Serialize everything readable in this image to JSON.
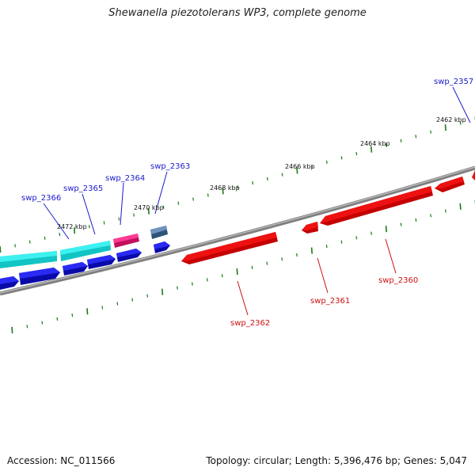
{
  "title": "Shewanella piezotolerans WP3, complete genome",
  "footer": {
    "accession_text": "Accession: NC_011566",
    "summary_text": "Topology: circular; Length: 5,396,476 bp; Genes: 5,047"
  },
  "colors": {
    "backbone": "#7f7f7f",
    "tick": "#1a7a1a",
    "forward_label": "#1a1acc",
    "reverse_label": "#cc1111",
    "reverse_gene": "#ee1111",
    "forward_gene": "#1010ee",
    "cyan_gene": "#22e0e0",
    "magenta_gene": "#e0207a",
    "steel_gene": "#4a6f9a"
  },
  "scale": {
    "tick_labels": [
      {
        "text": "2462 kbp",
        "kbp": 2462
      },
      {
        "text": "2464 kbp",
        "kbp": 2464
      },
      {
        "text": "2466 kbp",
        "kbp": 2466
      },
      {
        "text": "2468 kbp",
        "kbp": 2468
      },
      {
        "text": "2470 kbp",
        "kbp": 2470
      },
      {
        "text": "2472 kbp",
        "kbp": 2472
      }
    ]
  },
  "genes_forward": [
    {
      "name": "swp_2357"
    },
    {
      "name": "swp_2363"
    },
    {
      "name": "swp_2364"
    },
    {
      "name": "swp_2365"
    },
    {
      "name": "swp_2366"
    }
  ],
  "genes_reverse": [
    {
      "name": "swp_2360"
    },
    {
      "name": "swp_2361"
    },
    {
      "name": "swp_2362"
    }
  ]
}
